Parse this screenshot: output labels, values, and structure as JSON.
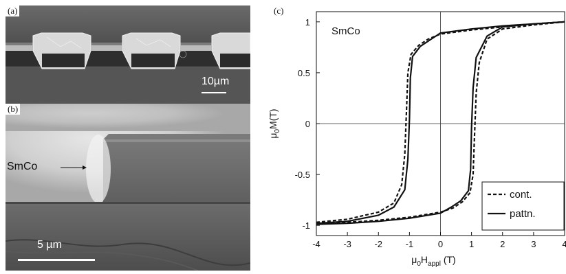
{
  "panels": {
    "a": {
      "label": "(a)",
      "scale_bar_label": "10µm"
    },
    "b": {
      "label": "(b)",
      "material_label": "SmCo",
      "scale_bar_label": "5 µm"
    },
    "c": {
      "label": "(c)"
    }
  },
  "chart_data": {
    "type": "line",
    "annotation": "SmCo",
    "xlabel": {
      "base": "μ",
      "sub1": "0",
      "mid": "H",
      "sub2": "appl",
      "unit": " (T)"
    },
    "ylabel": {
      "base": "μ",
      "sub": "0",
      "rest": "M(T)"
    },
    "xlim": [
      -4,
      4
    ],
    "ylim": [
      -1.1,
      1.1
    ],
    "x_ticks": [
      "-4",
      "-3",
      "-2",
      "-1",
      "0",
      "1",
      "2",
      "3",
      "4"
    ],
    "y_ticks": [
      "1",
      "0.5",
      "0",
      "-0.5",
      "-1"
    ],
    "legend_position": "bottom-right",
    "series": [
      {
        "name": "cont.",
        "style": "dashed",
        "upper_branch": [
          [
            -4,
            -0.97
          ],
          [
            -3,
            -0.94
          ],
          [
            -2,
            -0.87
          ],
          [
            -1.5,
            -0.78
          ],
          [
            -1.25,
            -0.6
          ],
          [
            -1.15,
            -0.3
          ],
          [
            -1.1,
            0.1
          ],
          [
            -1.05,
            0.5
          ],
          [
            -0.95,
            0.68
          ],
          [
            -0.7,
            0.77
          ],
          [
            -0.4,
            0.83
          ],
          [
            0,
            0.88
          ],
          [
            1,
            0.92
          ],
          [
            2,
            0.95
          ],
          [
            3,
            0.98
          ],
          [
            4,
            1.0
          ]
        ],
        "lower_branch": [
          [
            4,
            1.0
          ],
          [
            3,
            0.97
          ],
          [
            2,
            0.93
          ],
          [
            1.5,
            0.83
          ],
          [
            1.25,
            0.6
          ],
          [
            1.15,
            0.3
          ],
          [
            1.1,
            -0.1
          ],
          [
            1.05,
            -0.5
          ],
          [
            0.95,
            -0.68
          ],
          [
            0.7,
            -0.77
          ],
          [
            0.4,
            -0.83
          ],
          [
            0,
            -0.87
          ],
          [
            -1,
            -0.92
          ],
          [
            -2,
            -0.95
          ],
          [
            -3,
            -0.97
          ],
          [
            -4,
            -0.99
          ]
        ]
      },
      {
        "name": "pattn.",
        "style": "solid",
        "upper_branch": [
          [
            -4,
            -0.98
          ],
          [
            -3,
            -0.96
          ],
          [
            -2,
            -0.9
          ],
          [
            -1.5,
            -0.82
          ],
          [
            -1.15,
            -0.65
          ],
          [
            -1.05,
            -0.35
          ],
          [
            -1.0,
            0.05
          ],
          [
            -0.97,
            0.45
          ],
          [
            -0.9,
            0.66
          ],
          [
            -0.65,
            0.76
          ],
          [
            -0.35,
            0.82
          ],
          [
            0,
            0.89
          ],
          [
            1,
            0.93
          ],
          [
            2,
            0.96
          ],
          [
            3,
            0.98
          ],
          [
            4,
            1.0
          ]
        ],
        "lower_branch": [
          [
            4,
            1.0
          ],
          [
            3,
            0.98
          ],
          [
            2,
            0.95
          ],
          [
            1.5,
            0.86
          ],
          [
            1.15,
            0.65
          ],
          [
            1.05,
            0.35
          ],
          [
            1.0,
            -0.05
          ],
          [
            0.97,
            -0.45
          ],
          [
            0.9,
            -0.66
          ],
          [
            0.65,
            -0.76
          ],
          [
            0.35,
            -0.82
          ],
          [
            0,
            -0.88
          ],
          [
            -1,
            -0.93
          ],
          [
            -2,
            -0.96
          ],
          [
            -3,
            -0.98
          ],
          [
            -4,
            -0.99
          ]
        ]
      }
    ]
  }
}
